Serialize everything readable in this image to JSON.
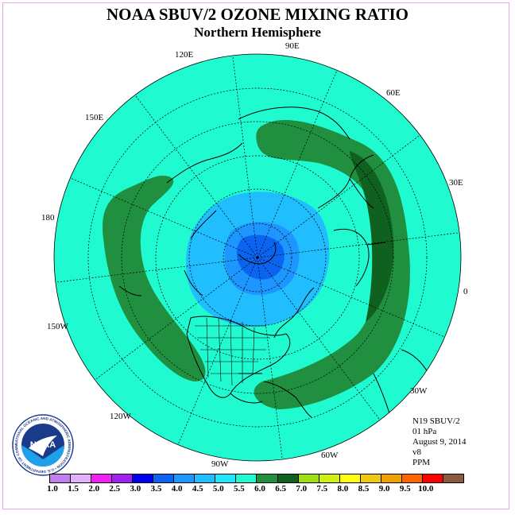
{
  "title": "NOAA SBUV/2 OZONE MIXING RATIO",
  "subtitle": "Northern Hemisphere",
  "longitude_labels": [
    "90E",
    "60E",
    "30E",
    "0",
    "30W",
    "60W",
    "90W",
    "120W",
    "150W",
    "180",
    "150E",
    "120E"
  ],
  "info": {
    "instrument": "N19 SBUV/2",
    "level": "01 hPa",
    "date": "August 9, 2014",
    "version": "v8",
    "units": "PPM"
  },
  "logo": {
    "center_text": "NOAA",
    "ring_text": "NATIONAL OCEANIC AND ATMOSPHERIC ADMINISTRATION • U.S. DEPARTMENT OF COMMERCE •"
  },
  "colorbar": {
    "colors": [
      "#c080f0",
      "#e0b0f8",
      "#f020f0",
      "#a020f0",
      "#0000f0",
      "#0a64f0",
      "#1e96ff",
      "#20beff",
      "#20e6ff",
      "#20fad0",
      "#209040",
      "#106020",
      "#a0e010",
      "#d0f010",
      "#ffff10",
      "#f0c810",
      "#f0a000",
      "#ff6400",
      "#ff0000",
      "#8c5a3c"
    ],
    "ticks": [
      "1.0",
      "1.5",
      "2.0",
      "2.5",
      "3.0",
      "3.5",
      "4.0",
      "4.5",
      "5.0",
      "5.5",
      "6.0",
      "6.5",
      "7.0",
      "7.5",
      "8.0",
      "8.5",
      "9.0",
      "9.5",
      "10.0"
    ]
  },
  "map_colors": {
    "background": "#20fad0",
    "band": "#209040",
    "band_dark": "#106020",
    "low_light": "#20beff",
    "low_mid": "#1e96ff",
    "low_core": "#0a64f0"
  }
}
